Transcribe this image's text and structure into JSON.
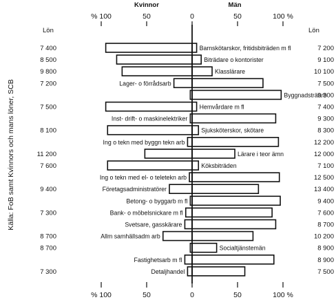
{
  "chart_data": {
    "type": "bar",
    "title": "",
    "side_label": "Källa: FoB samt Kvinnors och mans löner, SCB",
    "left_group_label": "Kvinnor",
    "right_group_label": "Män",
    "left_column_header": "Lön",
    "right_column_header": "Lön",
    "xlim": [
      -100,
      100
    ],
    "x_ticks": [
      "% 100",
      "50",
      "0",
      "50",
      "100 %"
    ],
    "categories": [
      "Barnskötarskor, fritidsbiträden m fl",
      "Biträdare o kontorister",
      "Klasslärare",
      "Lager- o förrådsarb",
      "Byggnadsträarb",
      "Hemvårdare m fl",
      "Inst- drift- o maskinelektriker",
      "Sjuksköterskor, skötare",
      "Ing o tekn med byggn tekn arb",
      "Lärare i teor ämn",
      "Köksbiträden",
      "Ing o tekn med el- o teletekn arb",
      "Företagsadministratörer",
      "Betong- o byggarb m fl",
      "Bank- o möbelsnickare m fl",
      "Svetsare, gasskärare",
      "Allm samhällsadm arb",
      "Socialtjänstemän",
      "Fastighetsarb m fl",
      "Detaljhandel"
    ],
    "label_side": [
      "right",
      "right",
      "right",
      "left",
      "right",
      "right",
      "left",
      "right",
      "left",
      "right",
      "right",
      "left",
      "left",
      "left",
      "left",
      "left",
      "left",
      "right",
      "left",
      "left"
    ],
    "series": [
      {
        "name": "Kvinnor",
        "values": [
          95,
          83,
          77,
          20,
          2,
          95,
          2,
          93,
          5,
          52,
          93,
          3,
          25,
          2,
          7,
          8,
          32,
          2,
          8,
          5
        ]
      },
      {
        "name": "Män",
        "values": [
          5,
          10,
          22,
          78,
          98,
          5,
          92,
          7,
          95,
          47,
          7,
          96,
          73,
          97,
          88,
          92,
          67,
          27,
          90,
          58
        ]
      }
    ],
    "left_wages": [
      "7 400",
      "8 500",
      "9 800",
      "7 200",
      "",
      "7 500",
      "",
      "8 100",
      "",
      "11 200",
      "7 600",
      "",
      "9 400",
      "",
      "7 300",
      "",
      "8 700",
      "8 700",
      "",
      "7 300"
    ],
    "right_wages": [
      "7 200",
      "9 100",
      "10 100",
      "7 500",
      "9 300",
      "7 400",
      "9 300",
      "8 300",
      "12 200",
      "12 000",
      "7 100",
      "12 500",
      "13 400",
      "9 400",
      "7 600",
      "8 700",
      "10 200",
      "8 900",
      "8 900",
      "7 500"
    ]
  }
}
